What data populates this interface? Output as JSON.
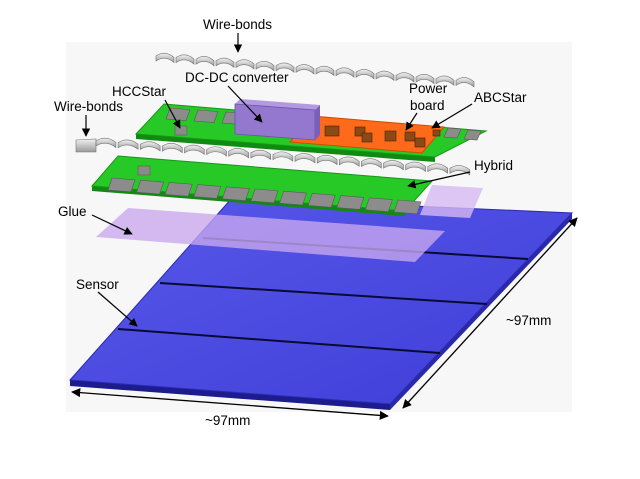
{
  "labels": {
    "wire_bonds_top": "Wire-bonds",
    "dcdc_converter": "DC-DC converter",
    "hccstar": "HCCStar",
    "power_board_line1": "Power",
    "power_board_line2": "board",
    "abcstar": "ABCStar",
    "wire_bonds_left": "Wire-bonds",
    "hybrid": "Hybrid",
    "glue": "Glue",
    "sensor": "Sensor",
    "dim_right": "~97mm",
    "dim_bottom": "~97mm"
  },
  "colors": {
    "sensor": "#4a4ae0",
    "sensor_edge": "#1c1c8c",
    "glue": "#c9a8ee",
    "pcb": "#27c927",
    "chip": "#8a8a8a",
    "dcdc": "#9478d0",
    "power_board": "#ff6a1a",
    "wirebond": "#c8c8c8"
  },
  "icons": {
    "wirebond": "wirebond-arch-icon",
    "chip": "asic-chip-icon"
  }
}
